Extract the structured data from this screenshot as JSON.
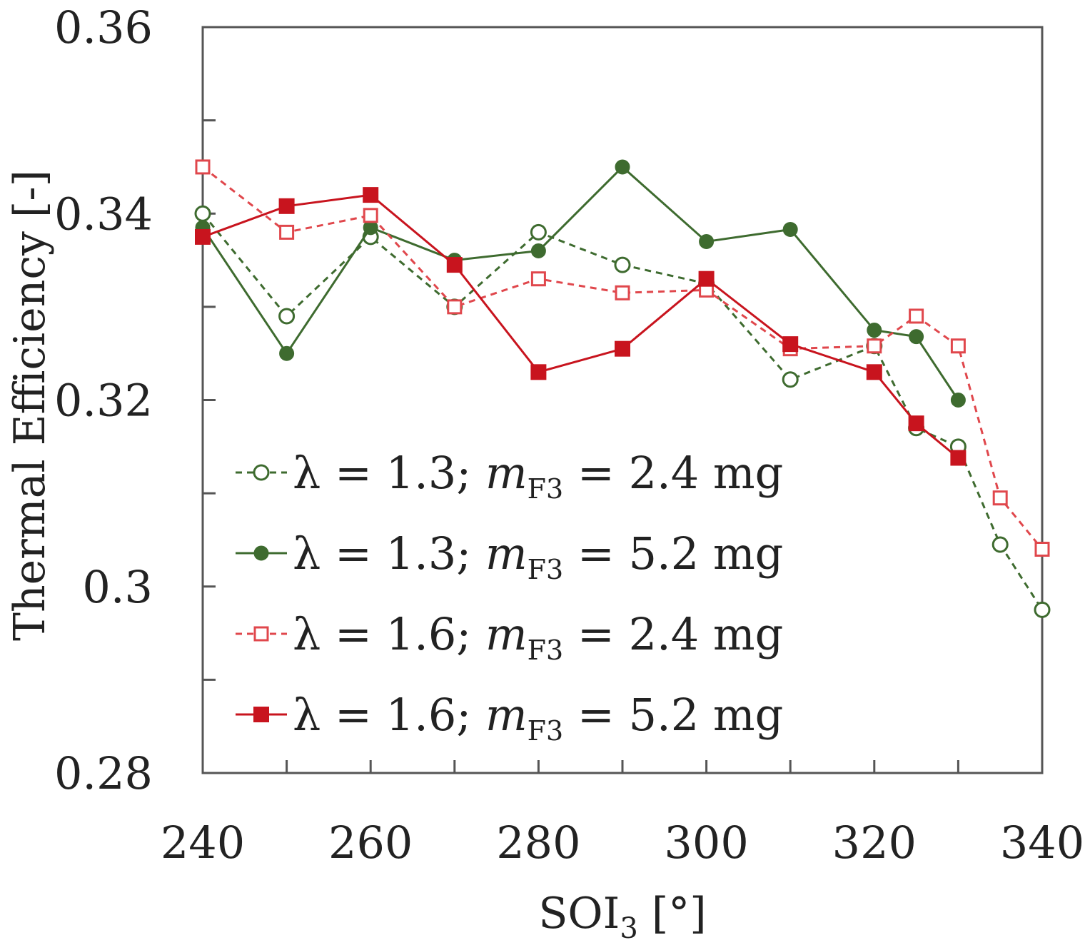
{
  "chart_data": {
    "type": "line",
    "title": "",
    "xlabel": {
      "main": "SOI",
      "sub": "3",
      "unit": " [°]"
    },
    "ylabel": "Thermal Efficiency [-]",
    "xlim": [
      240,
      340
    ],
    "ylim": [
      0.28,
      0.36
    ],
    "x_ticks": [
      240,
      260,
      280,
      300,
      320,
      340
    ],
    "x_tick_labels": [
      "240",
      "260",
      "280",
      "300",
      "320",
      "340"
    ],
    "x_minor_ticks": [
      250,
      270,
      290,
      310,
      330
    ],
    "y_ticks": [
      0.28,
      0.3,
      0.32,
      0.34,
      0.36
    ],
    "y_tick_labels": [
      "0.28",
      "0.3",
      "0.32",
      "0.34",
      "0.36"
    ],
    "y_minor_ticks": [
      0.29,
      0.31,
      0.33,
      0.35
    ],
    "grid": false,
    "legend_position": "lower-left",
    "series": [
      {
        "name": "λ = 1.3; mF3 = 2.4 mg",
        "label": {
          "pre": "λ = 1.3; ",
          "var": "m",
          "sub": "F3",
          "post": " = 2.4 mg"
        },
        "color": "#3e6b2f",
        "dashed": true,
        "marker": "circle-open",
        "points": [
          [
            240,
            0.34
          ],
          [
            250,
            0.329
          ],
          [
            260,
            0.3375
          ],
          [
            270,
            0.33
          ],
          [
            280,
            0.338
          ],
          [
            290,
            0.3345
          ],
          [
            300,
            0.3325
          ],
          [
            310,
            0.3222
          ],
          [
            320,
            0.3258
          ],
          [
            325,
            0.317
          ],
          [
            330,
            0.315
          ],
          [
            335,
            0.3045
          ],
          [
            340,
            0.2975
          ]
        ]
      },
      {
        "name": "λ = 1.3; mF3 = 5.2 mg",
        "label": {
          "pre": "λ = 1.3; ",
          "var": "m",
          "sub": "F3",
          "post": " = 5.2 mg"
        },
        "color": "#3e6b2f",
        "dashed": false,
        "marker": "circle-filled",
        "points": [
          [
            240,
            0.3385
          ],
          [
            250,
            0.325
          ],
          [
            260,
            0.3385
          ],
          [
            270,
            0.335
          ],
          [
            280,
            0.336
          ],
          [
            290,
            0.345
          ],
          [
            300,
            0.337
          ],
          [
            310,
            0.3383
          ],
          [
            320,
            0.3275
          ],
          [
            325,
            0.3268
          ],
          [
            330,
            0.32
          ]
        ]
      },
      {
        "name": "λ = 1.6; mF3 = 2.4 mg",
        "label": {
          "pre": "λ = 1.6; ",
          "var": "m",
          "sub": "F3",
          "post": " = 2.4 mg"
        },
        "color": "#e0474c",
        "dashed": true,
        "marker": "square-open",
        "points": [
          [
            240,
            0.345
          ],
          [
            250,
            0.338
          ],
          [
            260,
            0.3398
          ],
          [
            270,
            0.33
          ],
          [
            280,
            0.333
          ],
          [
            290,
            0.3315
          ],
          [
            300,
            0.3318
          ],
          [
            310,
            0.3255
          ],
          [
            320,
            0.3258
          ],
          [
            325,
            0.329
          ],
          [
            330,
            0.3258
          ],
          [
            335,
            0.3095
          ],
          [
            340,
            0.304
          ]
        ]
      },
      {
        "name": "λ = 1.6; mF3 = 5.2 mg",
        "label": {
          "pre": "λ = 1.6; ",
          "var": "m",
          "sub": "F3",
          "post": " = 5.2 mg"
        },
        "color": "#c8141e",
        "dashed": false,
        "marker": "square-filled",
        "points": [
          [
            240,
            0.3375
          ],
          [
            250,
            0.3408
          ],
          [
            260,
            0.342
          ],
          [
            270,
            0.3345
          ],
          [
            280,
            0.323
          ],
          [
            290,
            0.3255
          ],
          [
            300,
            0.333
          ],
          [
            310,
            0.326
          ],
          [
            320,
            0.323
          ],
          [
            325,
            0.3175
          ],
          [
            330,
            0.3138
          ]
        ]
      }
    ]
  }
}
